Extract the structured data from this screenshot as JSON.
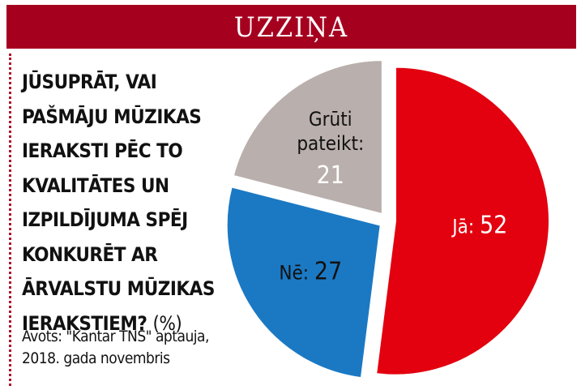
{
  "header": {
    "title": "UZZIŅA"
  },
  "chart_data": {
    "type": "pie",
    "question_lines": [
      "JŪSUPRĀT, VAI",
      "PAŠMĀJU MŪZIKAS",
      "IERAKSTI PĒC TO",
      "KVALITĀTES UN",
      "IZPILDĪJUMA SPĒJ",
      "KONKURĒT AR",
      "ĀRVALSTU MŪZIKAS",
      "IERAKSTIEM?"
    ],
    "unit": "(%)",
    "source_lines": [
      "Avots: \"Kantar TNS\" aptauja,",
      "2018. gada novembris"
    ],
    "categories": [
      "Jā:",
      "Nē:",
      "Grūti pateikt:"
    ],
    "values": [
      52,
      27,
      21
    ],
    "colors": [
      "#e3000f",
      "#1b79c4",
      "#b9afac"
    ]
  }
}
